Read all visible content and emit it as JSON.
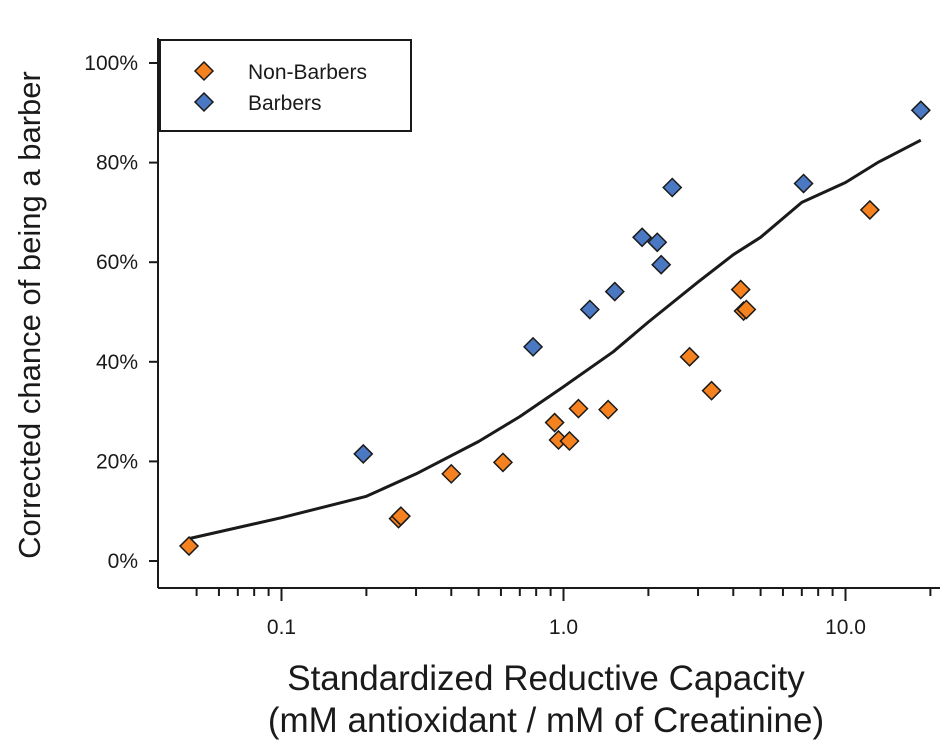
{
  "chart_data": {
    "type": "scatter",
    "title": "",
    "xlabel": "Standardized Reductive Capacity",
    "xlabel_line2": "(mM antioxidant / mM of Creatinine)",
    "ylabel": "Corrected chance of being a barber",
    "x_scale": "log",
    "xlim": [
      0.04,
      22
    ],
    "ylim": [
      -0.05,
      1.05
    ],
    "x_ticks": [
      {
        "value": 0.1,
        "label": "0.1"
      },
      {
        "value": 1.0,
        "label": "1.0"
      },
      {
        "value": 10.0,
        "label": "10.0"
      }
    ],
    "y_ticks": [
      {
        "value": 0,
        "label": "0%"
      },
      {
        "value": 0.2,
        "label": "20%"
      },
      {
        "value": 0.4,
        "label": "40%"
      },
      {
        "value": 0.6,
        "label": "60%"
      },
      {
        "value": 0.8,
        "label": "80%"
      },
      {
        "value": 1.0,
        "label": "100%"
      }
    ],
    "grid": false,
    "legend_position": "top-left",
    "series": [
      {
        "name": "Non-Barbers",
        "color": "#f5821f",
        "marker": "diamond",
        "points": [
          {
            "x": 0.047,
            "y": 0.03
          },
          {
            "x": 0.26,
            "y": 0.085
          },
          {
            "x": 0.265,
            "y": 0.09
          },
          {
            "x": 0.4,
            "y": 0.175
          },
          {
            "x": 0.61,
            "y": 0.198
          },
          {
            "x": 0.93,
            "y": 0.278
          },
          {
            "x": 0.96,
            "y": 0.243
          },
          {
            "x": 1.05,
            "y": 0.241
          },
          {
            "x": 1.13,
            "y": 0.306
          },
          {
            "x": 1.44,
            "y": 0.304
          },
          {
            "x": 2.8,
            "y": 0.41
          },
          {
            "x": 3.35,
            "y": 0.342
          },
          {
            "x": 4.25,
            "y": 0.545
          },
          {
            "x": 4.35,
            "y": 0.502
          },
          {
            "x": 4.45,
            "y": 0.505
          },
          {
            "x": 12.2,
            "y": 0.705
          }
        ]
      },
      {
        "name": "Barbers",
        "color": "#4a78c2",
        "marker": "diamond",
        "points": [
          {
            "x": 0.195,
            "y": 0.215
          },
          {
            "x": 0.78,
            "y": 0.43
          },
          {
            "x": 1.24,
            "y": 0.505
          },
          {
            "x": 1.52,
            "y": 0.541
          },
          {
            "x": 1.9,
            "y": 0.65
          },
          {
            "x": 2.15,
            "y": 0.64
          },
          {
            "x": 2.22,
            "y": 0.595
          },
          {
            "x": 2.43,
            "y": 0.75
          },
          {
            "x": 7.1,
            "y": 0.758
          },
          {
            "x": 18.5,
            "y": 0.905
          }
        ]
      }
    ],
    "fit_line": {
      "color": "#1a1a1a",
      "points": [
        {
          "x": 0.047,
          "y": 0.045
        },
        {
          "x": 0.1,
          "y": 0.087
        },
        {
          "x": 0.2,
          "y": 0.13
        },
        {
          "x": 0.3,
          "y": 0.175
        },
        {
          "x": 0.5,
          "y": 0.24
        },
        {
          "x": 0.7,
          "y": 0.29
        },
        {
          "x": 1.0,
          "y": 0.35
        },
        {
          "x": 1.5,
          "y": 0.42
        },
        {
          "x": 2.0,
          "y": 0.48
        },
        {
          "x": 3.0,
          "y": 0.56
        },
        {
          "x": 4.0,
          "y": 0.615
        },
        {
          "x": 5.0,
          "y": 0.65
        },
        {
          "x": 7.0,
          "y": 0.72
        },
        {
          "x": 10.0,
          "y": 0.76
        },
        {
          "x": 13.0,
          "y": 0.8
        },
        {
          "x": 18.5,
          "y": 0.845
        }
      ]
    }
  }
}
